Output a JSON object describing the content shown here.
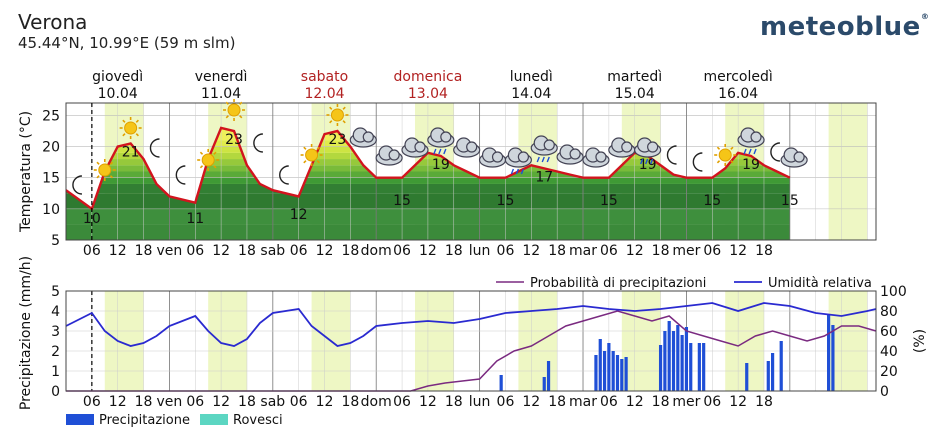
{
  "location": {
    "name": "Verona",
    "coords": "45.44°N, 10.99°E (59 m slm)"
  },
  "brand": {
    "name": "meteoblue",
    "mark": "®"
  },
  "colors": {
    "temp_line": "#d2141e",
    "day_band": "#eef7c4",
    "precip": "#1f4fd6",
    "showers": "#5cd6c2",
    "prob_line": "#7a2a80",
    "humidity_line": "#2a2ad0",
    "weekend": "#b22222"
  },
  "days": [
    {
      "name": "giovedì",
      "date": "10.04",
      "weekend": false
    },
    {
      "name": "venerdì",
      "date": "11.04",
      "weekend": false
    },
    {
      "name": "sabato",
      "date": "12.04",
      "weekend": true
    },
    {
      "name": "domenica",
      "date": "13.04",
      "weekend": true
    },
    {
      "name": "lunedì",
      "date": "14.04",
      "weekend": false
    },
    {
      "name": "martedì",
      "date": "15.04",
      "weekend": false
    },
    {
      "name": "mercoledì",
      "date": "16.04",
      "weekend": false
    }
  ],
  "x_ticks": [
    "06",
    "12",
    "18",
    "ven",
    "06",
    "12",
    "18",
    "sab",
    "06",
    "12",
    "18",
    "dom",
    "06",
    "12",
    "18",
    "lun",
    "06",
    "12",
    "18",
    "mar",
    "06",
    "12",
    "18",
    "mer",
    "06",
    "12",
    "18"
  ],
  "chart_data": [
    {
      "type": "line",
      "ylabel": "Temperatura (°C)",
      "ylim": [
        5,
        27
      ],
      "yticks": [
        5,
        10,
        15,
        20,
        25
      ],
      "x_unit": "hours since 10.04 00:00",
      "series": [
        {
          "values_x": [
            0,
            6,
            9,
            12,
            15,
            18,
            21,
            24,
            30,
            33,
            36,
            39,
            42,
            45,
            48,
            54,
            57,
            60,
            63,
            66,
            69,
            72,
            78,
            81,
            84,
            87,
            90,
            93,
            96,
            102,
            105,
            108,
            111,
            114,
            117,
            120,
            126,
            129,
            132,
            135,
            138,
            141,
            144,
            150,
            153,
            156,
            159,
            162,
            165,
            168
          ],
          "values_y": [
            13,
            10,
            16,
            20,
            20.5,
            18,
            14,
            12,
            11,
            18,
            23,
            22.5,
            17,
            14,
            13,
            12,
            17,
            22,
            22.5,
            20,
            17,
            15,
            15,
            17,
            19,
            18.5,
            17,
            16,
            15,
            15,
            16,
            17,
            16.5,
            16,
            15.5,
            15,
            15,
            17,
            19,
            18.5,
            17,
            15.5,
            15,
            15,
            16.5,
            19,
            18.5,
            17,
            16,
            15
          ]
        }
      ],
      "labels": {
        "min": [
          {
            "x": 6,
            "v": "10"
          },
          {
            "x": 30,
            "v": "11"
          },
          {
            "x": 54,
            "v": "12"
          },
          {
            "x": 78,
            "v": "15"
          },
          {
            "x": 102,
            "v": "15"
          },
          {
            "x": 126,
            "v": "15"
          },
          {
            "x": 150,
            "v": "15"
          },
          {
            "x": 168,
            "v": "15"
          }
        ],
        "max": [
          {
            "x": 15,
            "v": "21"
          },
          {
            "x": 39,
            "v": "23"
          },
          {
            "x": 63,
            "v": "23"
          },
          {
            "x": 87,
            "v": "19"
          },
          {
            "x": 111,
            "v": "17"
          },
          {
            "x": 135,
            "v": "19"
          },
          {
            "x": 159,
            "v": "19"
          }
        ]
      }
    },
    {
      "type": "bar",
      "ylabel": "Precipitazione (mm/h)",
      "ylim": [
        0,
        5
      ],
      "yticks": [
        0,
        1,
        2,
        3,
        4,
        5
      ],
      "y2label": "(%)",
      "y2lim": [
        0,
        100
      ],
      "y2ticks": [
        0,
        20,
        40,
        60,
        80,
        100
      ],
      "x_unit": "hours since 10.04 00:00",
      "precip_bars": [
        [
          101,
          0.8
        ],
        [
          111,
          0.7
        ],
        [
          112,
          1.5
        ],
        [
          123,
          1.8
        ],
        [
          124,
          2.6
        ],
        [
          125,
          2.0
        ],
        [
          126,
          2.4
        ],
        [
          127,
          2.0
        ],
        [
          128,
          1.8
        ],
        [
          129,
          1.6
        ],
        [
          130,
          1.7
        ],
        [
          138,
          2.3
        ],
        [
          139,
          3.0
        ],
        [
          140,
          3.5
        ],
        [
          141,
          3.0
        ],
        [
          142,
          3.3
        ],
        [
          143,
          2.8
        ],
        [
          144,
          3.2
        ],
        [
          145,
          2.4
        ],
        [
          147,
          2.4
        ],
        [
          148,
          2.4
        ],
        [
          158,
          1.4
        ],
        [
          163,
          1.5
        ],
        [
          164,
          1.9
        ],
        [
          166,
          2.5
        ],
        [
          177,
          3.8
        ],
        [
          178,
          3.3
        ]
      ],
      "series": [
        {
          "name": "Probabilità di precipitazioni",
          "x": [
            0,
            80,
            84,
            88,
            92,
            96,
            100,
            104,
            108,
            112,
            116,
            120,
            124,
            128,
            132,
            136,
            140,
            144,
            148,
            152,
            156,
            160,
            164,
            168,
            172,
            176,
            180,
            184,
            188
          ],
          "y": [
            0,
            0,
            5,
            8,
            10,
            12,
            30,
            40,
            45,
            55,
            65,
            70,
            75,
            80,
            75,
            70,
            75,
            60,
            55,
            50,
            45,
            55,
            60,
            55,
            50,
            55,
            65,
            65,
            60
          ]
        },
        {
          "name": "Umidità relativa",
          "x": [
            0,
            6,
            9,
            12,
            15,
            18,
            21,
            24,
            30,
            33,
            36,
            39,
            42,
            45,
            48,
            54,
            57,
            60,
            63,
            66,
            69,
            72,
            78,
            84,
            90,
            96,
            102,
            108,
            114,
            120,
            126,
            132,
            138,
            144,
            150,
            156,
            162,
            168,
            174,
            180,
            186,
            188
          ],
          "y": [
            65,
            78,
            60,
            50,
            45,
            48,
            55,
            65,
            75,
            60,
            48,
            45,
            52,
            68,
            78,
            82,
            65,
            55,
            45,
            48,
            55,
            65,
            68,
            70,
            68,
            72,
            78,
            80,
            82,
            85,
            82,
            80,
            82,
            85,
            88,
            80,
            88,
            85,
            78,
            75,
            80,
            82
          ]
        }
      ]
    }
  ],
  "legend": {
    "precip": "Precipitazione",
    "showers": "Rovesci"
  }
}
